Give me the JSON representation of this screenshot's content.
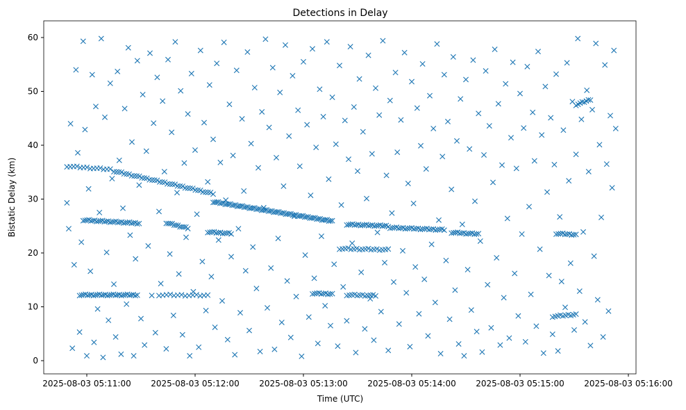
{
  "chart_data": {
    "type": "scatter",
    "title": "Detections in Delay",
    "xlabel": "Time (UTC)",
    "ylabel": "Bistatic Delay (km)",
    "x_unit": "seconds after 2025-08-03 05:10:00 UTC",
    "xlim": [
      36,
      363
    ],
    "ylim": [
      -2.5,
      62.5
    ],
    "grid": false,
    "marker": "x",
    "color": "#1f77b4",
    "xticks": [
      {
        "value": 60,
        "label": "2025-08-03 05:11:00"
      },
      {
        "value": 120,
        "label": "2025-08-03 05:12:00"
      },
      {
        "value": 180,
        "label": "2025-08-03 05:13:00"
      },
      {
        "value": 240,
        "label": "2025-08-03 05:14:00"
      },
      {
        "value": 300,
        "label": "2025-08-03 05:15:00"
      },
      {
        "value": 360,
        "label": "2025-08-03 05:16:00"
      }
    ],
    "yticks": [
      {
        "value": 0,
        "label": "0"
      },
      {
        "value": 10,
        "label": "10"
      },
      {
        "value": 20,
        "label": "20"
      },
      {
        "value": 30,
        "label": "30"
      },
      {
        "value": 40,
        "label": "40"
      },
      {
        "value": 50,
        "label": "50"
      },
      {
        "value": 60,
        "label": "60"
      }
    ],
    "tracks": [
      {
        "t0": 49,
        "t1": 73,
        "d0": 36.1,
        "d1": 35.5,
        "n": 14
      },
      {
        "t0": 75,
        "t1": 130,
        "d0": 35.2,
        "d1": 31.0,
        "n": 40
      },
      {
        "t0": 130,
        "t1": 196,
        "d0": 29.5,
        "d1": 25.9,
        "n": 70
      },
      {
        "t0": 204,
        "t1": 227,
        "d0": 25.3,
        "d1": 25.0,
        "n": 22
      },
      {
        "t0": 228,
        "t1": 258,
        "d0": 24.7,
        "d1": 24.3,
        "n": 26
      },
      {
        "t0": 262,
        "t1": 277,
        "d0": 23.8,
        "d1": 23.5,
        "n": 14
      },
      {
        "t0": 58,
        "t1": 89,
        "d0": 26.1,
        "d1": 25.5,
        "n": 30
      },
      {
        "t0": 104,
        "t1": 116,
        "d0": 25.6,
        "d1": 24.6,
        "n": 12
      },
      {
        "t0": 56,
        "t1": 88,
        "d0": 12.2,
        "d1": 12.2,
        "n": 30
      },
      {
        "t0": 100,
        "t1": 127,
        "d0": 12.2,
        "d1": 12.1,
        "n": 14
      },
      {
        "t0": 185,
        "t1": 196,
        "d0": 12.5,
        "d1": 12.4,
        "n": 10
      },
      {
        "t0": 204,
        "t1": 220,
        "d0": 12.2,
        "d1": 12.1,
        "n": 12
      },
      {
        "t0": 200,
        "t1": 227,
        "d0": 20.8,
        "d1": 20.6,
        "n": 18
      },
      {
        "t0": 127,
        "t1": 140,
        "d0": 23.9,
        "d1": 23.6,
        "n": 12
      },
      {
        "t0": 320,
        "t1": 331,
        "d0": 23.6,
        "d1": 23.4,
        "n": 10
      },
      {
        "t0": 318,
        "t1": 331,
        "d0": 8.2,
        "d1": 8.6,
        "n": 10
      },
      {
        "t0": 331,
        "t1": 339,
        "d0": 47.5,
        "d1": 48.5,
        "n": 8
      }
    ],
    "points": [
      [
        49,
        29.3
      ],
      [
        50,
        24.5
      ],
      [
        51,
        44
      ],
      [
        52,
        2.3
      ],
      [
        53,
        17.8
      ],
      [
        54,
        54
      ],
      [
        55,
        38.6
      ],
      [
        56,
        5.3
      ],
      [
        57,
        22
      ],
      [
        58,
        59.3
      ],
      [
        59,
        42.9
      ],
      [
        60,
        0.9
      ],
      [
        61,
        31.9
      ],
      [
        62,
        16.6
      ],
      [
        63,
        53.1
      ],
      [
        64,
        3.4
      ],
      [
        65,
        47.2
      ],
      [
        66,
        9.6
      ],
      [
        67,
        27.5
      ],
      [
        68,
        59.8
      ],
      [
        69,
        0.6
      ],
      [
        70,
        45.2
      ],
      [
        71,
        20.1
      ],
      [
        72,
        7.5
      ],
      [
        73,
        51.5
      ],
      [
        74,
        33.8
      ],
      [
        75,
        14.2
      ],
      [
        76,
        4.4
      ],
      [
        77,
        53.7
      ],
      [
        78,
        37.2
      ],
      [
        79,
        1.2
      ],
      [
        80,
        28.3
      ],
      [
        81,
        46.8
      ],
      [
        82,
        10.5
      ],
      [
        83,
        58.1
      ],
      [
        84,
        23.3
      ],
      [
        85,
        40.6
      ],
      [
        86,
        0.9
      ],
      [
        87,
        18.9
      ],
      [
        88,
        55.7
      ],
      [
        89,
        32.6
      ],
      [
        90,
        7.8
      ],
      [
        91,
        49.4
      ],
      [
        92,
        2.9
      ],
      [
        93,
        38.9
      ],
      [
        94,
        21.3
      ],
      [
        95,
        57.1
      ],
      [
        96,
        12.1
      ],
      [
        97,
        44.1
      ],
      [
        98,
        5.2
      ],
      [
        99,
        52.6
      ],
      [
        100,
        27.7
      ],
      [
        101,
        14.3
      ],
      [
        102,
        48.2
      ],
      [
        103,
        35.1
      ],
      [
        104,
        2.2
      ],
      [
        105,
        55.9
      ],
      [
        106,
        19.8
      ],
      [
        107,
        42.4
      ],
      [
        108,
        8.4
      ],
      [
        109,
        59.2
      ],
      [
        110,
        31.2
      ],
      [
        111,
        16.1
      ],
      [
        112,
        50.1
      ],
      [
        113,
        4.8
      ],
      [
        114,
        36.7
      ],
      [
        115,
        22.9
      ],
      [
        116,
        45.8
      ],
      [
        117,
        0.9
      ],
      [
        118,
        53.3
      ],
      [
        119,
        12.8
      ],
      [
        120,
        39.1
      ],
      [
        121,
        27.2
      ],
      [
        122,
        2.5
      ],
      [
        123,
        57.6
      ],
      [
        124,
        18.4
      ],
      [
        125,
        44.2
      ],
      [
        126,
        9.3
      ],
      [
        127,
        33.2
      ],
      [
        128,
        51.2
      ],
      [
        129,
        15.6
      ],
      [
        130,
        41.1
      ],
      [
        131,
        6.2
      ],
      [
        132,
        55.2
      ],
      [
        133,
        22.4
      ],
      [
        134,
        36.8
      ],
      [
        135,
        11.1
      ],
      [
        136,
        59.1
      ],
      [
        137,
        29.8
      ],
      [
        138,
        3.9
      ],
      [
        139,
        47.6
      ],
      [
        140,
        19.3
      ],
      [
        141,
        38.1
      ],
      [
        142,
        1.1
      ],
      [
        143,
        53.9
      ],
      [
        144,
        24.5
      ],
      [
        145,
        8.9
      ],
      [
        146,
        44.9
      ],
      [
        147,
        31.5
      ],
      [
        148,
        16.7
      ],
      [
        149,
        57.3
      ],
      [
        150,
        5.6
      ],
      [
        151,
        40.3
      ],
      [
        152,
        21.1
      ],
      [
        153,
        50.7
      ],
      [
        154,
        13.4
      ],
      [
        155,
        35.8
      ],
      [
        156,
        1.7
      ],
      [
        157,
        46.2
      ],
      [
        158,
        28.4
      ],
      [
        159,
        59.7
      ],
      [
        160,
        9.8
      ],
      [
        161,
        43.3
      ],
      [
        162,
        17.2
      ],
      [
        163,
        54.4
      ],
      [
        164,
        2.1
      ],
      [
        165,
        37.7
      ],
      [
        166,
        22.7
      ],
      [
        167,
        49.8
      ],
      [
        168,
        7.1
      ],
      [
        169,
        32.4
      ],
      [
        170,
        58.6
      ],
      [
        171,
        14.8
      ],
      [
        172,
        41.7
      ],
      [
        173,
        4.3
      ],
      [
        174,
        52.9
      ],
      [
        175,
        26.8
      ],
      [
        176,
        11.9
      ],
      [
        177,
        46.5
      ],
      [
        178,
        36.1
      ],
      [
        179,
        0.8
      ],
      [
        180,
        55.5
      ],
      [
        181,
        19.6
      ],
      [
        182,
        43.8
      ],
      [
        183,
        8.1
      ],
      [
        184,
        30.7
      ],
      [
        185,
        57.9
      ],
      [
        186,
        15.3
      ],
      [
        187,
        39.6
      ],
      [
        188,
        3.2
      ],
      [
        189,
        50.4
      ],
      [
        190,
        23.1
      ],
      [
        191,
        45.3
      ],
      [
        192,
        10.2
      ],
      [
        193,
        59.2
      ],
      [
        194,
        33.7
      ],
      [
        195,
        6.5
      ],
      [
        196,
        48.9
      ],
      [
        197,
        17.9
      ],
      [
        198,
        40.2
      ],
      [
        199,
        2.7
      ],
      [
        200,
        54.8
      ],
      [
        201,
        28.9
      ],
      [
        202,
        13.7
      ],
      [
        203,
        44.6
      ],
      [
        204,
        7.4
      ],
      [
        205,
        37.4
      ],
      [
        206,
        58.3
      ],
      [
        207,
        21.8
      ],
      [
        208,
        47.1
      ],
      [
        209,
        1.5
      ],
      [
        210,
        35.2
      ],
      [
        211,
        52.3
      ],
      [
        212,
        16.4
      ],
      [
        213,
        42.5
      ],
      [
        214,
        5.9
      ],
      [
        215,
        30.1
      ],
      [
        216,
        56.7
      ],
      [
        217,
        11.5
      ],
      [
        218,
        38.4
      ],
      [
        219,
        3.8
      ],
      [
        220,
        50.6
      ],
      [
        221,
        23.8
      ],
      [
        222,
        45.6
      ],
      [
        223,
        9.1
      ],
      [
        224,
        59.4
      ],
      [
        225,
        18.2
      ],
      [
        226,
        34.4
      ],
      [
        227,
        1.9
      ],
      [
        228,
        48.3
      ],
      [
        229,
        27.4
      ],
      [
        230,
        14.6
      ],
      [
        231,
        53.5
      ],
      [
        232,
        38.7
      ],
      [
        233,
        6.8
      ],
      [
        234,
        44.7
      ],
      [
        235,
        20.4
      ],
      [
        236,
        57.2
      ],
      [
        237,
        12.6
      ],
      [
        238,
        32.9
      ],
      [
        239,
        2.6
      ],
      [
        240,
        51.8
      ],
      [
        241,
        29.2
      ],
      [
        242,
        17.4
      ],
      [
        243,
        46.9
      ],
      [
        244,
        8.7
      ],
      [
        245,
        39.9
      ],
      [
        246,
        55.1
      ],
      [
        247,
        15.1
      ],
      [
        248,
        35.6
      ],
      [
        249,
        4.6
      ],
      [
        250,
        49.2
      ],
      [
        251,
        21.6
      ],
      [
        252,
        43.1
      ],
      [
        253,
        10.8
      ],
      [
        254,
        58.8
      ],
      [
        255,
        26.1
      ],
      [
        256,
        1.3
      ],
      [
        257,
        37.9
      ],
      [
        258,
        53.1
      ],
      [
        259,
        18.6
      ],
      [
        260,
        44.4
      ],
      [
        261,
        7.7
      ],
      [
        262,
        31.8
      ],
      [
        263,
        56.4
      ],
      [
        264,
        13.1
      ],
      [
        265,
        40.8
      ],
      [
        266,
        3.1
      ],
      [
        267,
        48.6
      ],
      [
        268,
        25.3
      ],
      [
        269,
        0.9
      ],
      [
        270,
        52.2
      ],
      [
        271,
        16.9
      ],
      [
        272,
        39.3
      ],
      [
        273,
        9.4
      ],
      [
        274,
        55.8
      ],
      [
        275,
        29.6
      ],
      [
        276,
        5.4
      ],
      [
        277,
        45.9
      ],
      [
        278,
        22.2
      ],
      [
        279,
        1.6
      ],
      [
        280,
        38.2
      ],
      [
        281,
        53.8
      ],
      [
        282,
        14.1
      ],
      [
        283,
        43.6
      ],
      [
        284,
        6.1
      ],
      [
        285,
        33.1
      ],
      [
        286,
        57.8
      ],
      [
        287,
        19.1
      ],
      [
        288,
        47.7
      ],
      [
        289,
        2.9
      ],
      [
        290,
        36.3
      ],
      [
        291,
        11.7
      ],
      [
        292,
        51.4
      ],
      [
        293,
        26.4
      ],
      [
        294,
        4.2
      ],
      [
        295,
        41.4
      ],
      [
        296,
        55.4
      ],
      [
        297,
        16.2
      ],
      [
        298,
        35.7
      ],
      [
        299,
        8.3
      ],
      [
        300,
        49.6
      ],
      [
        301,
        23.5
      ],
      [
        302,
        43.2
      ],
      [
        303,
        3.5
      ],
      [
        304,
        54.6
      ],
      [
        305,
        28.6
      ],
      [
        306,
        12.3
      ],
      [
        307,
        46.1
      ],
      [
        308,
        37.1
      ],
      [
        309,
        6.4
      ],
      [
        310,
        57.4
      ],
      [
        311,
        20.7
      ],
      [
        312,
        41.9
      ],
      [
        313,
        1.4
      ],
      [
        314,
        50.9
      ],
      [
        315,
        31.3
      ],
      [
        316,
        15.8
      ],
      [
        317,
        45.1
      ],
      [
        318,
        4.9
      ],
      [
        319,
        36.4
      ],
      [
        320,
        53.2
      ],
      [
        321,
        1.8
      ],
      [
        322,
        26.7
      ],
      [
        323,
        14.7
      ],
      [
        324,
        42.8
      ],
      [
        325,
        9.9
      ],
      [
        326,
        55.3
      ],
      [
        327,
        33.4
      ],
      [
        328,
        18.1
      ],
      [
        329,
        48.1
      ],
      [
        330,
        5.7
      ],
      [
        331,
        38.3
      ],
      [
        332,
        59.8
      ],
      [
        333,
        12.9
      ],
      [
        334,
        44.8
      ],
      [
        335,
        23.9
      ],
      [
        336,
        7.2
      ],
      [
        337,
        50.2
      ],
      [
        338,
        35.1
      ],
      [
        339,
        2.8
      ],
      [
        340,
        46.6
      ],
      [
        341,
        19.4
      ],
      [
        342,
        58.9
      ],
      [
        343,
        11.3
      ],
      [
        344,
        40.1
      ],
      [
        345,
        26.6
      ],
      [
        346,
        4.4
      ],
      [
        347,
        54.9
      ],
      [
        348,
        36.5
      ],
      [
        349,
        9.2
      ],
      [
        350,
        45.5
      ],
      [
        351,
        32.1
      ],
      [
        352,
        57.6
      ],
      [
        353,
        43.1
      ]
    ]
  }
}
